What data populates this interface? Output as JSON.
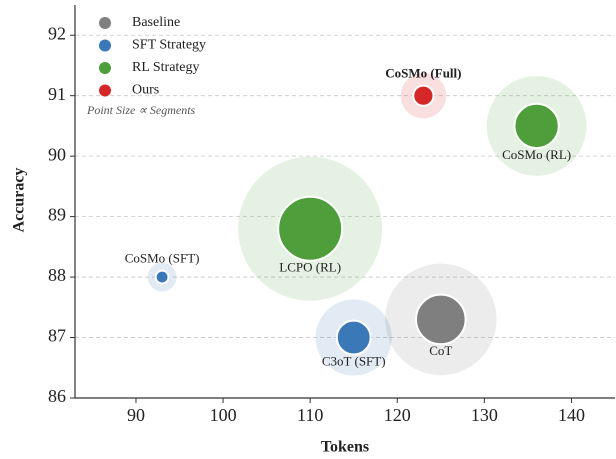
{
  "chart_data": {
    "type": "bubble",
    "xlabel": "Tokens",
    "ylabel": "Accuracy",
    "annotation": "Point Size ∝ Segments",
    "xlim": [
      83,
      145
    ],
    "ylim": [
      86,
      92.5
    ],
    "xticks": [
      90,
      100,
      110,
      120,
      130,
      140
    ],
    "yticks": [
      86,
      87,
      88,
      89,
      90,
      91,
      92
    ],
    "grid": true,
    "legend": "upper left",
    "series": [
      {
        "name": "Baseline",
        "color": "#7f7f7f",
        "labels": [
          "CoT"
        ],
        "x": [
          125
        ],
        "values": [
          87.3
        ],
        "sizes": [
          60
        ]
      },
      {
        "name": "SFT Strategy",
        "color": "#3b78b8",
        "labels": [
          "CoSMo (SFT)",
          "C3oT (SFT)"
        ],
        "x": [
          93,
          115
        ],
        "values": [
          88,
          87
        ],
        "sizes": [
          4,
          28
        ]
      },
      {
        "name": "RL Strategy",
        "color": "#4f9e3c",
        "labels": [
          "LCPO (RL)",
          "CoSMo (RL)"
        ],
        "x": [
          110,
          136
        ],
        "values": [
          88.8,
          90.5
        ],
        "sizes": [
          100,
          48
        ]
      },
      {
        "name": "Ours",
        "color": "#d62728",
        "labels": [
          "CoSMo (Full)"
        ],
        "x": [
          123
        ],
        "values": [
          91
        ],
        "sizes": [
          10
        ]
      }
    ]
  }
}
